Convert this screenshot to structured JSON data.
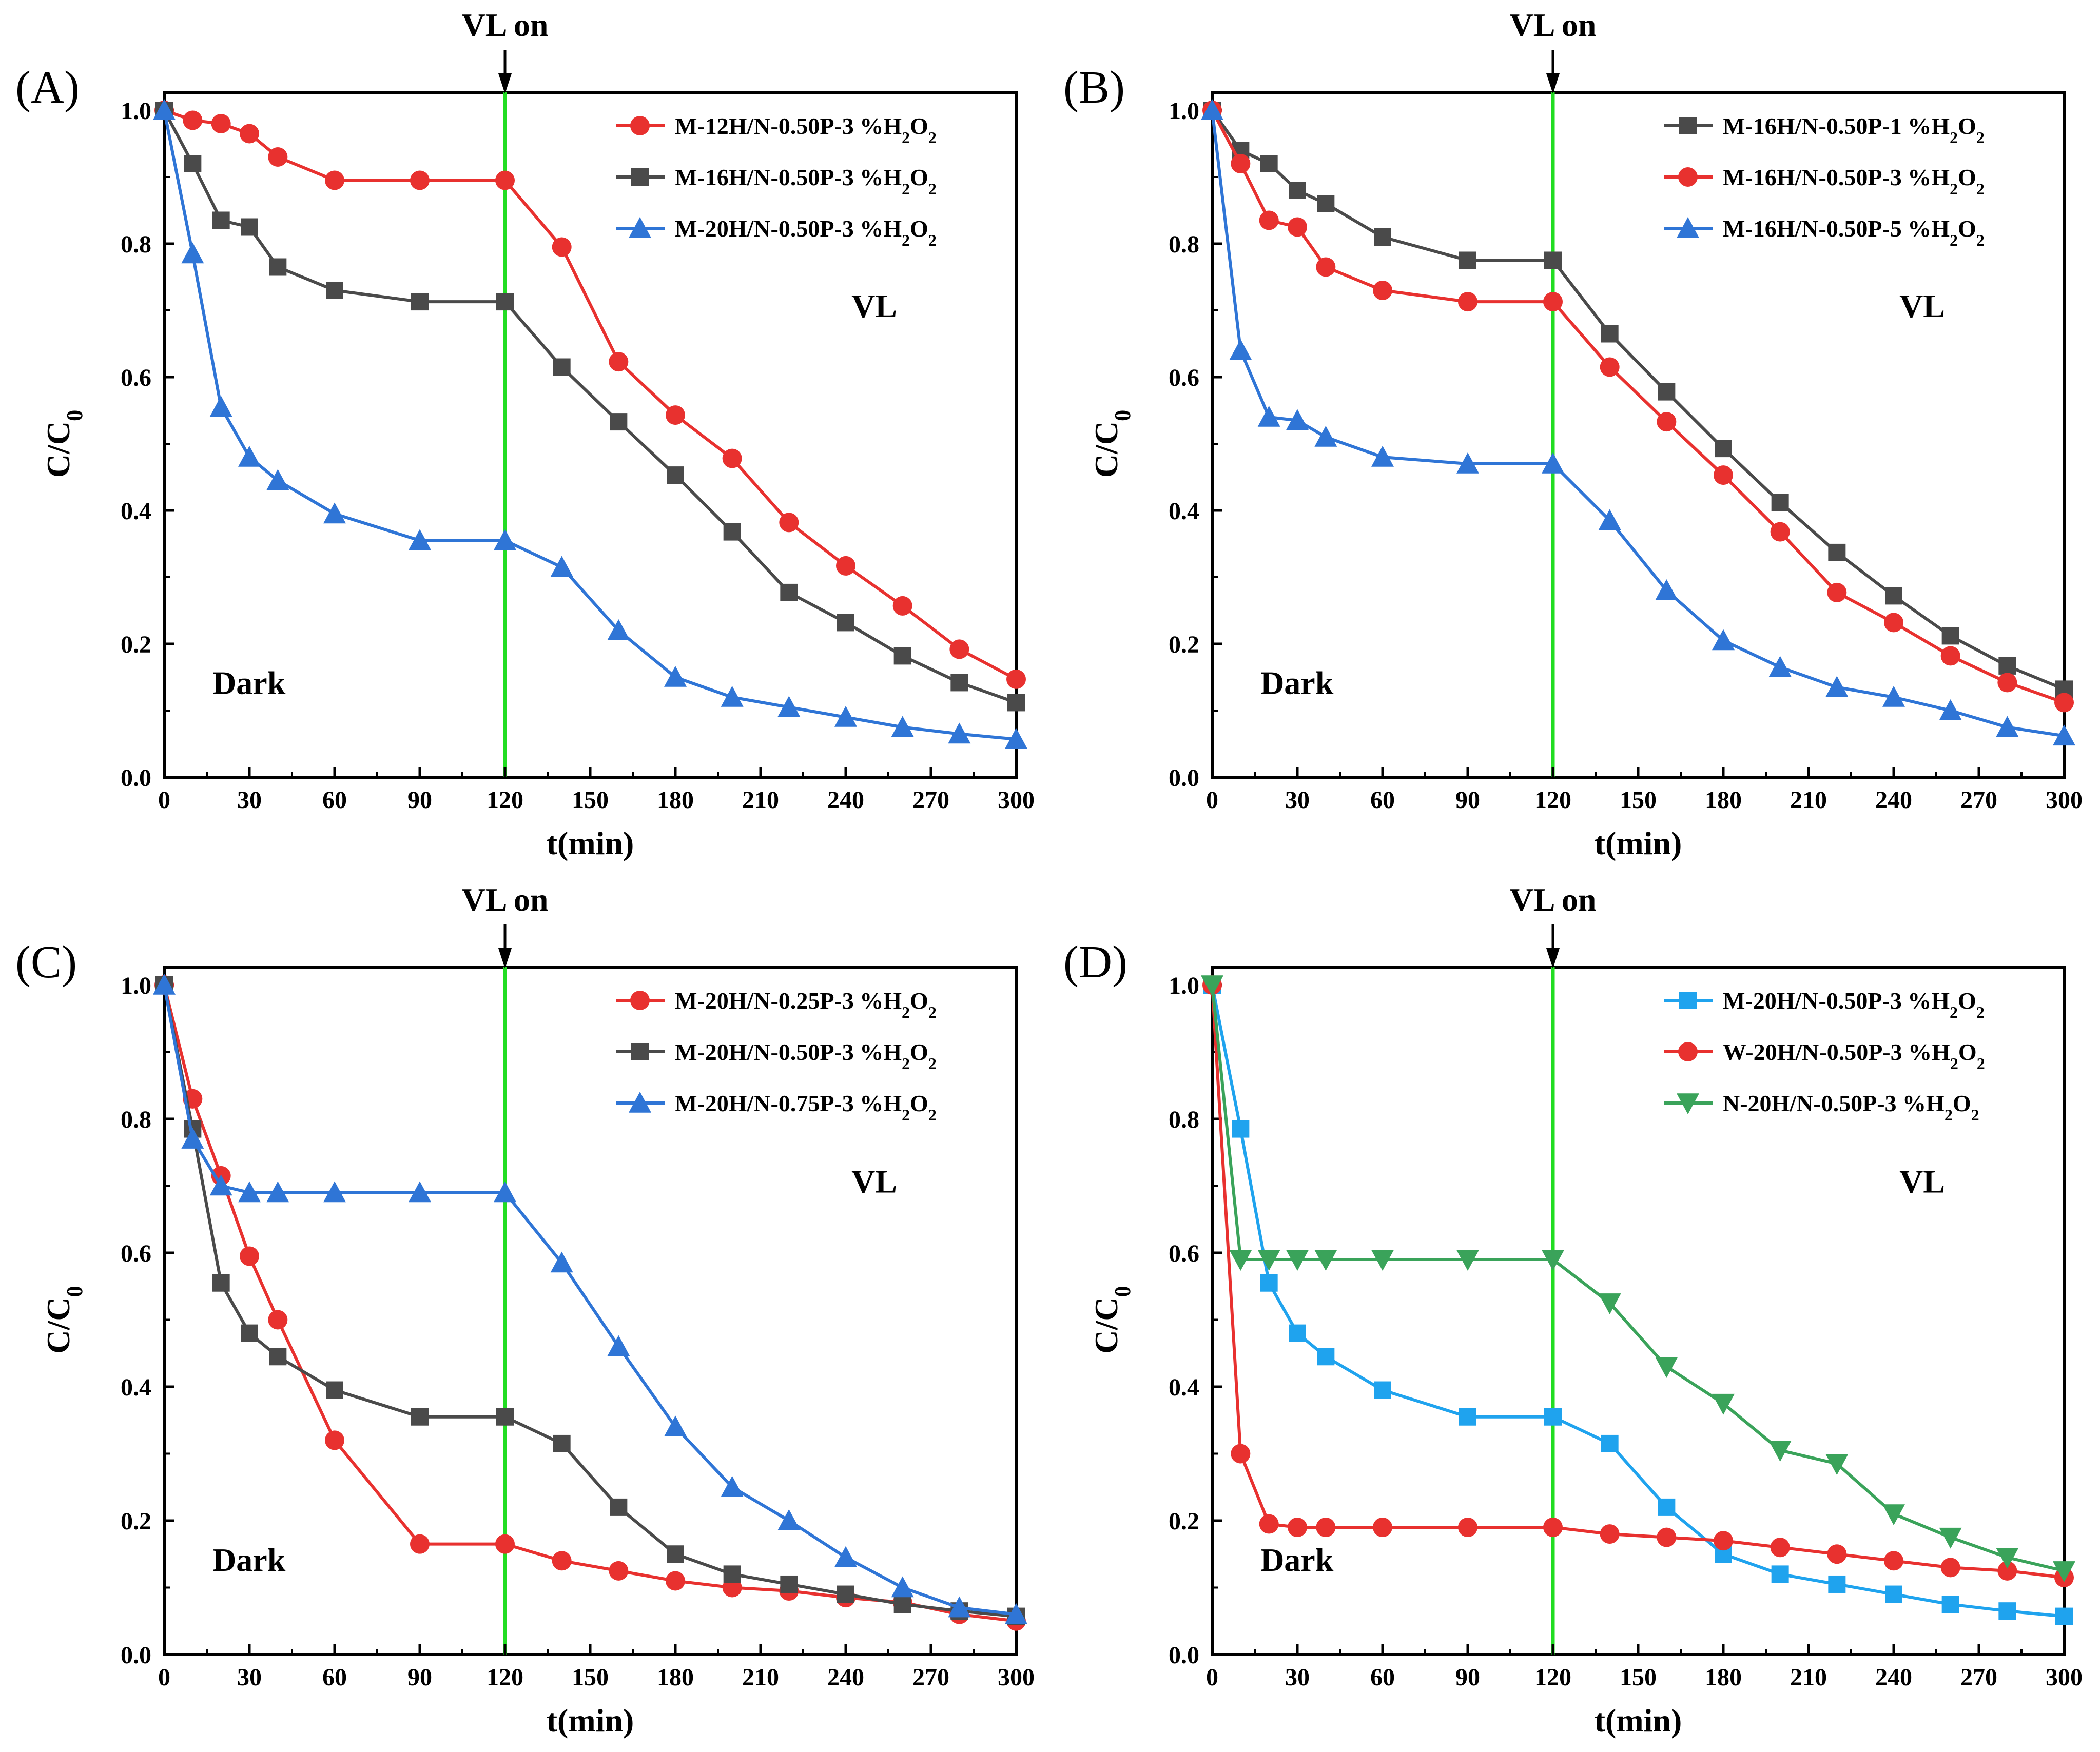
{
  "chart_data": [
    {
      "panel": "(A)",
      "type": "line",
      "xlabel": "t(min)",
      "ylabel": "C/C",
      "ylabel_sub": "0",
      "xlim": [
        0,
        300
      ],
      "ylim": [
        0,
        1.0
      ],
      "xticks": [
        0,
        30,
        60,
        90,
        120,
        150,
        180,
        210,
        240,
        270,
        300
      ],
      "yticks": [
        0.0,
        0.2,
        0.4,
        0.6,
        0.8,
        1.0
      ],
      "ytick_labels": [
        "0.0",
        "0.2",
        "0.4",
        "0.6",
        "0.8",
        "1.0"
      ],
      "legend_position": "top-right",
      "vline": {
        "x": 120,
        "color": "#22dd22",
        "label": "VL on"
      },
      "annotations": {
        "dark": "Dark",
        "vl": "VL"
      },
      "series": [
        {
          "name_main": "M-12H/N-0.50P-3 %H",
          "name_sub": "2",
          "name_mid": "O",
          "name_sub2": "2",
          "color": "#e8312f",
          "marker": "circle",
          "x": [
            0,
            10,
            20,
            30,
            40,
            60,
            90,
            120,
            140,
            160,
            180,
            200,
            220,
            240,
            260,
            280,
            300
          ],
          "y": [
            1.0,
            0.985,
            0.98,
            0.965,
            0.93,
            0.895,
            0.895,
            0.895,
            0.795,
            0.623,
            0.543,
            0.478,
            0.382,
            0.317,
            0.257,
            0.192,
            0.147
          ]
        },
        {
          "name_main": "M-16H/N-0.50P-3 %H",
          "name_sub": "2",
          "name_mid": "O",
          "name_sub2": "2",
          "color": "#4a4a4a",
          "marker": "square",
          "x": [
            0,
            10,
            20,
            30,
            40,
            60,
            90,
            120,
            140,
            160,
            180,
            200,
            220,
            240,
            260,
            280,
            300
          ],
          "y": [
            1.0,
            0.92,
            0.835,
            0.825,
            0.765,
            0.73,
            0.713,
            0.713,
            0.615,
            0.533,
            0.453,
            0.368,
            0.277,
            0.232,
            0.182,
            0.142,
            0.112
          ]
        },
        {
          "name_main": "M-20H/N-0.50P-3 %H",
          "name_sub": "2",
          "name_mid": "O",
          "name_sub2": "2",
          "color": "#2f75d6",
          "marker": "triangle-up",
          "x": [
            0,
            10,
            20,
            30,
            40,
            60,
            90,
            120,
            140,
            160,
            180,
            200,
            220,
            240,
            260,
            280,
            300
          ],
          "y": [
            1.0,
            0.785,
            0.555,
            0.48,
            0.445,
            0.395,
            0.355,
            0.355,
            0.315,
            0.22,
            0.15,
            0.12,
            0.105,
            0.09,
            0.075,
            0.065,
            0.057
          ]
        }
      ]
    },
    {
      "panel": "(B)",
      "type": "line",
      "xlabel": "t(min)",
      "ylabel": "C/C",
      "ylabel_sub": "0",
      "xlim": [
        0,
        300
      ],
      "ylim": [
        0,
        1.0
      ],
      "xticks": [
        0,
        30,
        60,
        90,
        120,
        150,
        180,
        210,
        240,
        270,
        300
      ],
      "yticks": [
        0.0,
        0.2,
        0.4,
        0.6,
        0.8,
        1.0
      ],
      "ytick_labels": [
        "0.0",
        "0.2",
        "0.4",
        "0.6",
        "0.8",
        "1.0"
      ],
      "legend_position": "top-right",
      "vline": {
        "x": 120,
        "color": "#22dd22",
        "label": "VL on"
      },
      "annotations": {
        "dark": "Dark",
        "vl": "VL"
      },
      "series": [
        {
          "name_main": "M-16H/N-0.50P-1 %H",
          "name_sub": "2",
          "name_mid": "O",
          "name_sub2": "2",
          "color": "#4a4a4a",
          "marker": "square",
          "x": [
            0,
            10,
            20,
            30,
            40,
            60,
            90,
            120,
            140,
            160,
            180,
            200,
            220,
            240,
            260,
            280,
            300
          ],
          "y": [
            1.0,
            0.94,
            0.92,
            0.88,
            0.86,
            0.81,
            0.775,
            0.775,
            0.665,
            0.578,
            0.493,
            0.412,
            0.337,
            0.272,
            0.212,
            0.167,
            0.132
          ]
        },
        {
          "name_main": "M-16H/N-0.50P-3 %H",
          "name_sub": "2",
          "name_mid": "O",
          "name_sub2": "2",
          "color": "#e8312f",
          "marker": "circle",
          "x": [
            0,
            10,
            20,
            30,
            40,
            60,
            90,
            120,
            140,
            160,
            180,
            200,
            220,
            240,
            260,
            280,
            300
          ],
          "y": [
            1.0,
            0.92,
            0.835,
            0.825,
            0.765,
            0.73,
            0.713,
            0.713,
            0.615,
            0.533,
            0.453,
            0.368,
            0.277,
            0.232,
            0.182,
            0.142,
            0.112
          ]
        },
        {
          "name_main": "M-16H/N-0.50P-5 %H",
          "name_sub": "2",
          "name_mid": "O",
          "name_sub2": "2",
          "color": "#2f75d6",
          "marker": "triangle-up",
          "x": [
            0,
            10,
            20,
            30,
            40,
            60,
            90,
            120,
            140,
            160,
            180,
            200,
            220,
            240,
            260,
            280,
            300
          ],
          "y": [
            1.0,
            0.64,
            0.54,
            0.535,
            0.51,
            0.48,
            0.47,
            0.47,
            0.385,
            0.28,
            0.205,
            0.165,
            0.135,
            0.12,
            0.1,
            0.075,
            0.062
          ]
        }
      ]
    },
    {
      "panel": "(C)",
      "type": "line",
      "xlabel": "t(min)",
      "ylabel": "C/C",
      "ylabel_sub": "0",
      "xlim": [
        0,
        300
      ],
      "ylim": [
        0,
        1.0
      ],
      "xticks": [
        0,
        30,
        60,
        90,
        120,
        150,
        180,
        210,
        240,
        270,
        300
      ],
      "yticks": [
        0.0,
        0.2,
        0.4,
        0.6,
        0.8,
        1.0
      ],
      "ytick_labels": [
        "0.0",
        "0.2",
        "0.4",
        "0.6",
        "0.8",
        "1.0"
      ],
      "legend_position": "top-right",
      "vline": {
        "x": 120,
        "color": "#22dd22",
        "label": "VL on"
      },
      "annotations": {
        "dark": "Dark",
        "vl": "VL"
      },
      "series": [
        {
          "name_main": "M-20H/N-0.25P-3 %H",
          "name_sub": "2",
          "name_mid": "O",
          "name_sub2": "2",
          "color": "#e8312f",
          "marker": "circle",
          "x": [
            0,
            10,
            20,
            30,
            40,
            60,
            90,
            120,
            140,
            160,
            180,
            200,
            220,
            240,
            260,
            280,
            300
          ],
          "y": [
            1.0,
            0.83,
            0.715,
            0.595,
            0.5,
            0.32,
            0.165,
            0.165,
            0.14,
            0.125,
            0.11,
            0.1,
            0.095,
            0.085,
            0.078,
            0.06,
            0.05
          ]
        },
        {
          "name_main": "M-20H/N-0.50P-3 %H",
          "name_sub": "2",
          "name_mid": "O",
          "name_sub2": "2",
          "color": "#4a4a4a",
          "marker": "square",
          "x": [
            0,
            10,
            20,
            30,
            40,
            60,
            90,
            120,
            140,
            160,
            180,
            200,
            220,
            240,
            260,
            280,
            300
          ],
          "y": [
            1.0,
            0.785,
            0.555,
            0.48,
            0.445,
            0.395,
            0.355,
            0.355,
            0.315,
            0.22,
            0.15,
            0.12,
            0.105,
            0.09,
            0.075,
            0.065,
            0.057
          ]
        },
        {
          "name_main": "M-20H/N-0.75P-3 %H",
          "name_sub": "2",
          "name_mid": "O",
          "name_sub2": "2",
          "color": "#2f75d6",
          "marker": "triangle-up",
          "x": [
            0,
            10,
            20,
            30,
            40,
            60,
            90,
            120,
            140,
            160,
            180,
            200,
            220,
            240,
            260,
            280,
            300
          ],
          "y": [
            1.0,
            0.77,
            0.7,
            0.69,
            0.69,
            0.69,
            0.69,
            0.69,
            0.585,
            0.46,
            0.34,
            0.25,
            0.2,
            0.145,
            0.1,
            0.07,
            0.06
          ]
        }
      ]
    },
    {
      "panel": "(D)",
      "type": "line",
      "xlabel": "t(min)",
      "ylabel": "C/C",
      "ylabel_sub": "0",
      "xlim": [
        0,
        300
      ],
      "ylim": [
        0,
        1.0
      ],
      "xticks": [
        0,
        30,
        60,
        90,
        120,
        150,
        180,
        210,
        240,
        270,
        300
      ],
      "yticks": [
        0.0,
        0.2,
        0.4,
        0.6,
        0.8,
        1.0
      ],
      "ytick_labels": [
        "0.0",
        "0.2",
        "0.4",
        "0.6",
        "0.8",
        "1.0"
      ],
      "legend_position": "top-right",
      "vline": {
        "x": 120,
        "color": "#22dd22",
        "label": "VL on"
      },
      "annotations": {
        "dark": "Dark",
        "vl": "VL"
      },
      "series": [
        {
          "name_main": "M-20H/N-0.50P-3 %H",
          "name_sub": "2",
          "name_mid": "O",
          "name_sub2": "2",
          "color": "#1fa3ee",
          "marker": "square",
          "x": [
            0,
            10,
            20,
            30,
            40,
            60,
            90,
            120,
            140,
            160,
            180,
            200,
            220,
            240,
            260,
            280,
            300
          ],
          "y": [
            1.0,
            0.785,
            0.555,
            0.48,
            0.445,
            0.395,
            0.355,
            0.355,
            0.315,
            0.22,
            0.15,
            0.12,
            0.105,
            0.09,
            0.075,
            0.065,
            0.057
          ]
        },
        {
          "name_main": "W-20H/N-0.50P-3 %H",
          "name_sub": "2",
          "name_mid": "O",
          "name_sub2": "2",
          "color": "#e8312f",
          "marker": "circle",
          "x": [
            0,
            10,
            20,
            30,
            40,
            60,
            90,
            120,
            140,
            160,
            180,
            200,
            220,
            240,
            260,
            280,
            300
          ],
          "y": [
            1.0,
            0.3,
            0.195,
            0.19,
            0.19,
            0.19,
            0.19,
            0.19,
            0.18,
            0.175,
            0.17,
            0.16,
            0.15,
            0.14,
            0.13,
            0.125,
            0.115
          ]
        },
        {
          "name_main": "N-20H/N-0.50P-3 %H",
          "name_sub": "2",
          "name_mid": "O",
          "name_sub2": "2",
          "color": "#3aa35a",
          "marker": "triangle-down",
          "x": [
            0,
            10,
            20,
            30,
            40,
            60,
            90,
            120,
            140,
            160,
            180,
            200,
            220,
            240,
            260,
            280,
            300
          ],
          "y": [
            1.0,
            0.59,
            0.59,
            0.59,
            0.59,
            0.59,
            0.59,
            0.59,
            0.525,
            0.43,
            0.375,
            0.305,
            0.285,
            0.21,
            0.175,
            0.145,
            0.125
          ]
        }
      ]
    }
  ]
}
